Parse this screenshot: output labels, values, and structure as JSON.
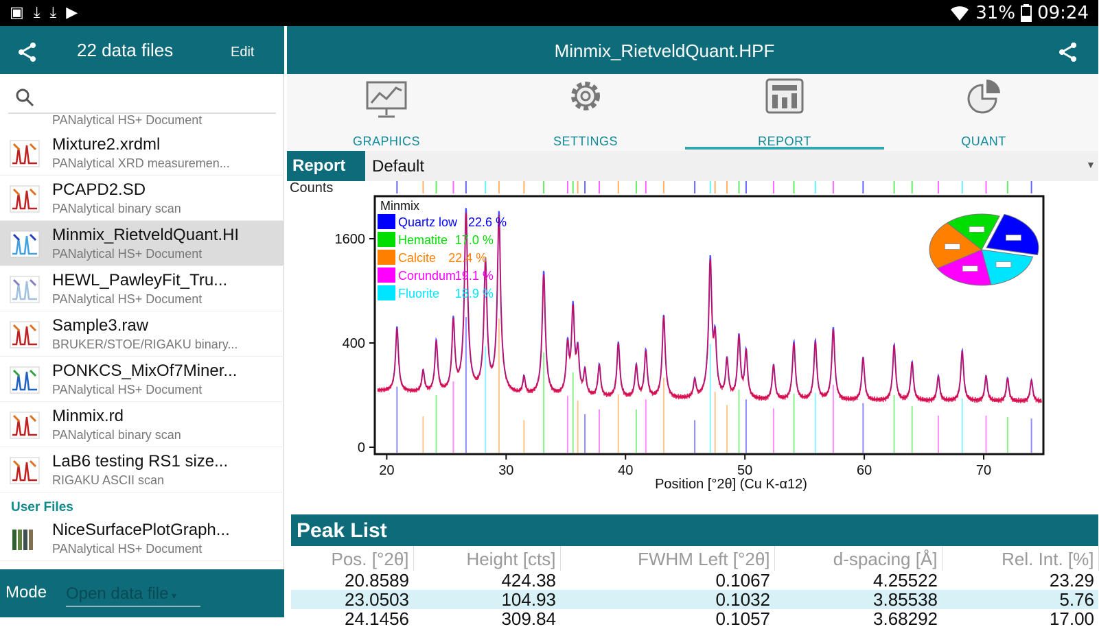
{
  "status": {
    "battery": "31%",
    "time": "09:24"
  },
  "sidebar": {
    "title": "22 data files",
    "edit_label": "Edit",
    "search_placeholder": "",
    "cutoff_desc": "PANalytical HS+ Document",
    "files": [
      {
        "name": "Mixture2.xrdml",
        "desc": "PANalytical XRD measuremen..."
      },
      {
        "name": "PCAPD2.SD",
        "desc": "PANalytical binary scan"
      },
      {
        "name": "Minmix_RietveldQuant.HI",
        "desc": "PANalytical HS+ Document"
      },
      {
        "name": "HEWL_PawleyFit_Tru...",
        "desc": "PANalytical HS+ Document"
      },
      {
        "name": "Sample3.raw",
        "desc": "BRUKER/STOE/RIGAKU binary..."
      },
      {
        "name": "PONKCS_MixOf7Miner...",
        "desc": "PANalytical HS+ Document"
      },
      {
        "name": "Minmix.rd",
        "desc": "PANalytical binary scan"
      },
      {
        "name": "LaB6 testing RS1 size...",
        "desc": "RIGAKU ASCII scan"
      }
    ],
    "user_files_label": "User Files",
    "user_files": [
      {
        "name": "NiceSurfacePlotGraph...",
        "desc": "PANalytical HS+ Document"
      }
    ],
    "mode_label": "Mode",
    "mode_value": "Open data file"
  },
  "header": {
    "title": "Minmix_RietveldQuant.HPF"
  },
  "tabs": [
    {
      "label": "GRAPHICS",
      "icon": "graphics-icon"
    },
    {
      "label": "SETTINGS",
      "icon": "gear-icon"
    },
    {
      "label": "REPORT",
      "icon": "report-icon"
    },
    {
      "label": "QUANT",
      "icon": "pie-chart-icon"
    }
  ],
  "report": {
    "label": "Report",
    "value": "Default"
  },
  "colors": {
    "teal": "#0e6b7a",
    "quartz": "#0000ff",
    "hematite": "#00dd00",
    "calcite": "#ff7f00",
    "corundum": "#ff00ff",
    "fluorite": "#00e5ff",
    "fit": "#e0003c"
  },
  "chart_data": {
    "type": "line",
    "title": "Minmix",
    "xlabel": "Position [°2θ] (Cu K-α12)",
    "ylabel": "Counts",
    "xlim": [
      19,
      75
    ],
    "y_ticks": [
      0,
      400,
      1600
    ],
    "x_ticks": [
      20,
      30,
      40,
      50,
      60,
      70
    ],
    "y_scale": "sqrt",
    "baseline": 75,
    "legend_position": "top-left",
    "phases": [
      {
        "name": "Quartz low",
        "percent": "22.6 %",
        "color": "#0000ff"
      },
      {
        "name": "Hematite",
        "percent": "17.0 %",
        "color": "#00dd00"
      },
      {
        "name": "Calcite",
        "percent": "22.4 %",
        "color": "#ff7f00"
      },
      {
        "name": "Corundum",
        "percent": "19.1 %",
        "color": "#ff00ff"
      },
      {
        "name": "Fluorite",
        "percent": "18.9 %",
        "color": "#00e5ff"
      }
    ],
    "pie": [
      22.6,
      17.0,
      22.4,
      19.1,
      18.9
    ],
    "peaks": [
      {
        "x": 20.86,
        "y": 424,
        "p": 0
      },
      {
        "x": 23.05,
        "y": 105,
        "p": 2
      },
      {
        "x": 24.15,
        "y": 310,
        "p": 1
      },
      {
        "x": 25.58,
        "y": 500,
        "p": 3
      },
      {
        "x": 26.64,
        "y": 2000,
        "p": 0
      },
      {
        "x": 28.27,
        "y": 1200,
        "p": 4
      },
      {
        "x": 29.4,
        "y": 1950,
        "p": 2
      },
      {
        "x": 31.5,
        "y": 80,
        "p": 2
      },
      {
        "x": 33.15,
        "y": 1050,
        "p": 1
      },
      {
        "x": 35.15,
        "y": 300,
        "p": 3
      },
      {
        "x": 35.6,
        "y": 650,
        "p": 1
      },
      {
        "x": 36.0,
        "y": 250,
        "p": 2
      },
      {
        "x": 36.6,
        "y": 120,
        "p": 0
      },
      {
        "x": 37.8,
        "y": 160,
        "p": 3
      },
      {
        "x": 39.4,
        "y": 320,
        "p": 2
      },
      {
        "x": 40.9,
        "y": 160,
        "p": 1
      },
      {
        "x": 41.7,
        "y": 260,
        "p": 3
      },
      {
        "x": 43.2,
        "y": 560,
        "p": 2
      },
      {
        "x": 45.8,
        "y": 80,
        "p": 0
      },
      {
        "x": 47.1,
        "y": 1250,
        "p": 4
      },
      {
        "x": 47.5,
        "y": 350,
        "p": 2
      },
      {
        "x": 48.5,
        "y": 200,
        "p": 2
      },
      {
        "x": 49.5,
        "y": 380,
        "p": 1
      },
      {
        "x": 50.1,
        "y": 260,
        "p": 0
      },
      {
        "x": 52.4,
        "y": 170,
        "p": 3
      },
      {
        "x": 54.1,
        "y": 330,
        "p": 1
      },
      {
        "x": 55.9,
        "y": 340,
        "p": 4
      },
      {
        "x": 57.4,
        "y": 450,
        "p": 3
      },
      {
        "x": 59.9,
        "y": 220,
        "p": 0
      },
      {
        "x": 62.5,
        "y": 310,
        "p": 1
      },
      {
        "x": 64.0,
        "y": 190,
        "p": 1
      },
      {
        "x": 66.2,
        "y": 110,
        "p": 3
      },
      {
        "x": 68.2,
        "y": 270,
        "p": 4
      },
      {
        "x": 70.2,
        "y": 110,
        "p": 3
      },
      {
        "x": 72.0,
        "y": 100,
        "p": 1
      },
      {
        "x": 74.0,
        "y": 90,
        "p": 0
      }
    ]
  },
  "peak_list": {
    "title": "Peak List",
    "columns": [
      "Pos. [°2θ]",
      "Height [cts]",
      "FWHM Left [°2θ]",
      "d-spacing [Å]",
      "Rel. Int. [%]"
    ],
    "rows": [
      [
        "20.8589",
        "424.38",
        "0.1067",
        "4.25522",
        "23.29"
      ],
      [
        "23.0503",
        "104.93",
        "0.1032",
        "3.85538",
        "5.76"
      ],
      [
        "24.1456",
        "309.84",
        "0.1057",
        "3.68292",
        "17.00"
      ]
    ]
  }
}
